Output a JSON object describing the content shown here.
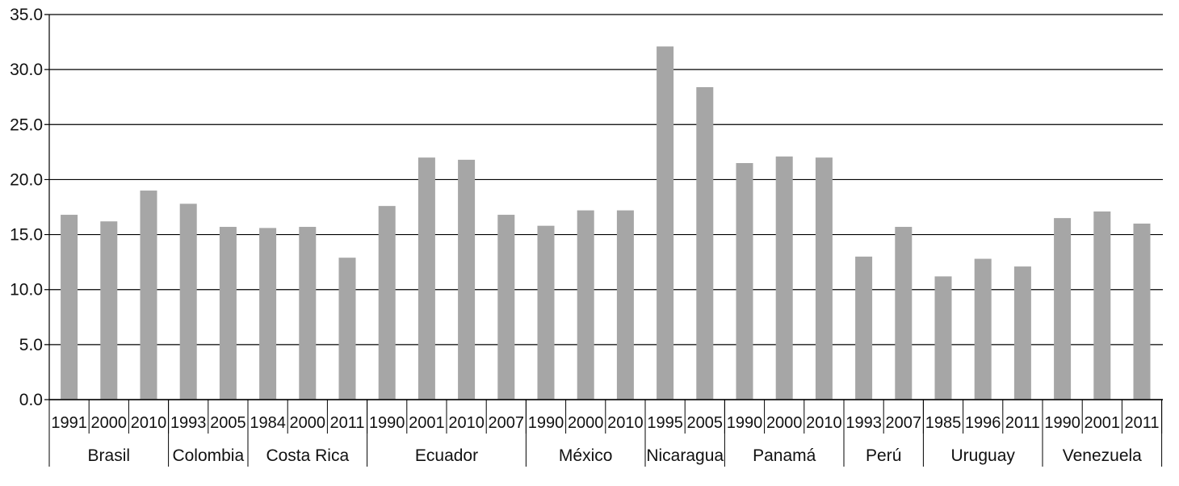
{
  "chart_data": {
    "type": "bar",
    "title": "",
    "xlabel": "",
    "ylabel": "",
    "ylim": [
      0,
      35
    ],
    "yticks": [
      "0.0",
      "5.0",
      "10.0",
      "15.0",
      "20.0",
      "25.0",
      "30.0",
      "35.0"
    ],
    "grid": true,
    "legend": "none",
    "bar_color": "#a6a6a6",
    "grid_color": "#000000",
    "groups": [
      {
        "country": "Brasil",
        "years": [
          "1991",
          "2000",
          "2010"
        ],
        "values": [
          16.8,
          16.2,
          19.0
        ]
      },
      {
        "country": "Colombia",
        "years": [
          "1993",
          "2005"
        ],
        "values": [
          17.8,
          15.7
        ]
      },
      {
        "country": "Costa Rica",
        "years": [
          "1984",
          "2000",
          "2011"
        ],
        "values": [
          15.6,
          15.7,
          12.9
        ]
      },
      {
        "country": "Ecuador",
        "years": [
          "1990",
          "2001",
          "2010",
          "2007"
        ],
        "values": [
          17.6,
          22.0,
          21.8,
          16.8
        ]
      },
      {
        "country": "México",
        "years": [
          "1990",
          "2000",
          "2010"
        ],
        "values": [
          15.8,
          17.2,
          17.2
        ]
      },
      {
        "country": "Nicaragua",
        "years": [
          "1995",
          "2005"
        ],
        "values": [
          32.1,
          28.4
        ]
      },
      {
        "country": "Panamá",
        "years": [
          "1990",
          "2000",
          "2010"
        ],
        "values": [
          21.5,
          22.1,
          22.0
        ]
      },
      {
        "country": "Perú",
        "years": [
          "1993",
          "2007"
        ],
        "values": [
          13.0,
          15.7
        ]
      },
      {
        "country": "Uruguay",
        "years": [
          "1985",
          "1996",
          "2011"
        ],
        "values": [
          11.2,
          12.8,
          12.1
        ]
      },
      {
        "country": "Venezuela",
        "years": [
          "1990",
          "2001",
          "2011"
        ],
        "values": [
          16.5,
          17.1,
          16.0
        ]
      }
    ]
  }
}
